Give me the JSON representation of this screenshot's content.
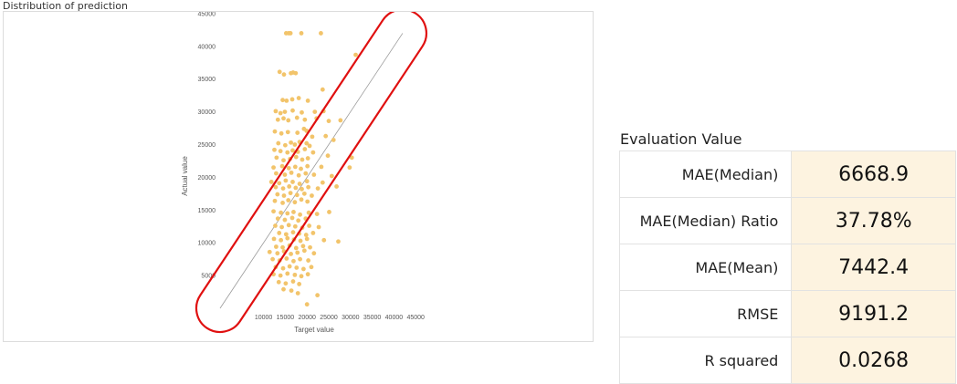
{
  "chart": {
    "title": "Distribution of prediction"
  },
  "evaluation": {
    "title": "Evaluation Value",
    "rows": [
      {
        "label": "MAE(Median)",
        "value": "6668.9"
      },
      {
        "label": "MAE(Median) Ratio",
        "value": "37.78%"
      },
      {
        "label": "MAE(Mean)",
        "value": "7442.4"
      },
      {
        "label": "RMSE",
        "value": "9191.2"
      },
      {
        "label": "R squared",
        "value": "0.0268"
      }
    ]
  },
  "chart_data": {
    "type": "scatter",
    "title": "Distribution of prediction",
    "xlabel": "Target value",
    "ylabel": "Actual value",
    "xlim": [
      0,
      45000
    ],
    "ylim": [
      0,
      45000
    ],
    "x_ticks": [
      "10000",
      "15000",
      "20000",
      "25000",
      "30000",
      "35000",
      "40000",
      "45000"
    ],
    "y_ticks": [
      "5000",
      "10000",
      "15000",
      "20000",
      "25000",
      "30000",
      "35000",
      "40000",
      "45000"
    ],
    "grid": false,
    "point_color": "#f2c46b",
    "diagonal_color": "#9a9a9a",
    "highlight_color": "#e01010",
    "reference_line": {
      "from": [
        0,
        0
      ],
      "to": [
        42000,
        42000
      ]
    },
    "points": [
      [
        15200,
        42000
      ],
      [
        15800,
        42000
      ],
      [
        16200,
        42000
      ],
      [
        18700,
        42000
      ],
      [
        23200,
        42000
      ],
      [
        13700,
        36100
      ],
      [
        14700,
        35700
      ],
      [
        16300,
        35900
      ],
      [
        16800,
        36000
      ],
      [
        17400,
        35900
      ],
      [
        14400,
        31800
      ],
      [
        15300,
        31700
      ],
      [
        16600,
        31900
      ],
      [
        18100,
        32100
      ],
      [
        20200,
        31700
      ],
      [
        12800,
        30100
      ],
      [
        13900,
        29800
      ],
      [
        14900,
        30000
      ],
      [
        16700,
        30200
      ],
      [
        18800,
        29900
      ],
      [
        21800,
        30000
      ],
      [
        23800,
        30100
      ],
      [
        13300,
        28800
      ],
      [
        14600,
        29000
      ],
      [
        15700,
        28700
      ],
      [
        17700,
        29100
      ],
      [
        19500,
        28800
      ],
      [
        22200,
        29000
      ],
      [
        25000,
        28600
      ],
      [
        12600,
        27000
      ],
      [
        14100,
        26700
      ],
      [
        15600,
        26900
      ],
      [
        17800,
        26800
      ],
      [
        19900,
        27100
      ],
      [
        13400,
        25200
      ],
      [
        15000,
        24900
      ],
      [
        16300,
        25300
      ],
      [
        17200,
        25000
      ],
      [
        18300,
        25400
      ],
      [
        19900,
        25200
      ],
      [
        20600,
        24800
      ],
      [
        12500,
        24200
      ],
      [
        13900,
        24000
      ],
      [
        15500,
        23800
      ],
      [
        16700,
        24100
      ],
      [
        17900,
        23900
      ],
      [
        19500,
        24300
      ],
      [
        21400,
        23800
      ],
      [
        13000,
        23000
      ],
      [
        14600,
        22600
      ],
      [
        16100,
        22800
      ],
      [
        17500,
        23100
      ],
      [
        18900,
        22700
      ],
      [
        20200,
        22900
      ],
      [
        24800,
        23300
      ],
      [
        12300,
        21500
      ],
      [
        14300,
        21700
      ],
      [
        15800,
        21400
      ],
      [
        17300,
        21600
      ],
      [
        18600,
        21300
      ],
      [
        20100,
        21700
      ],
      [
        23300,
        21600
      ],
      [
        29800,
        21500
      ],
      [
        12900,
        20600
      ],
      [
        14900,
        20400
      ],
      [
        16400,
        20700
      ],
      [
        18100,
        20300
      ],
      [
        19700,
        20600
      ],
      [
        21600,
        20400
      ],
      [
        25700,
        20200
      ],
      [
        11800,
        19300
      ],
      [
        13600,
        19100
      ],
      [
        15100,
        19500
      ],
      [
        16700,
        19300
      ],
      [
        18300,
        19000
      ],
      [
        20000,
        19400
      ],
      [
        23600,
        19200
      ],
      [
        12800,
        18500
      ],
      [
        14500,
        18300
      ],
      [
        15900,
        18600
      ],
      [
        17400,
        18400
      ],
      [
        18800,
        18200
      ],
      [
        20300,
        18500
      ],
      [
        22500,
        18300
      ],
      [
        26800,
        18600
      ],
      [
        13200,
        17400
      ],
      [
        14700,
        17200
      ],
      [
        16200,
        17600
      ],
      [
        17700,
        17300
      ],
      [
        19400,
        17500
      ],
      [
        21100,
        17200
      ],
      [
        12600,
        16400
      ],
      [
        14400,
        16100
      ],
      [
        15700,
        16500
      ],
      [
        17200,
        16200
      ],
      [
        18700,
        16600
      ],
      [
        20100,
        16300
      ],
      [
        12300,
        14800
      ],
      [
        14000,
        14600
      ],
      [
        15500,
        14500
      ],
      [
        16900,
        14700
      ],
      [
        18400,
        14300
      ],
      [
        20400,
        14600
      ],
      [
        22300,
        14400
      ],
      [
        25100,
        14700
      ],
      [
        13300,
        13700
      ],
      [
        14900,
        13500
      ],
      [
        16600,
        13800
      ],
      [
        18000,
        13400
      ],
      [
        19700,
        13700
      ],
      [
        12700,
        12600
      ],
      [
        14200,
        12400
      ],
      [
        15800,
        12700
      ],
      [
        17300,
        12500
      ],
      [
        18900,
        12300
      ],
      [
        20500,
        12600
      ],
      [
        22700,
        12400
      ],
      [
        13600,
        11500
      ],
      [
        15200,
        11300
      ],
      [
        16800,
        11600
      ],
      [
        18200,
        11400
      ],
      [
        19800,
        11200
      ],
      [
        21400,
        11500
      ],
      [
        12400,
        10600
      ],
      [
        14000,
        10400
      ],
      [
        15500,
        10700
      ],
      [
        17000,
        10500
      ],
      [
        18500,
        10300
      ],
      [
        20000,
        10600
      ],
      [
        23900,
        10400
      ],
      [
        12900,
        9400
      ],
      [
        14400,
        9300
      ],
      [
        16000,
        9600
      ],
      [
        17500,
        9200
      ],
      [
        19100,
        9500
      ],
      [
        20700,
        9300
      ],
      [
        27200,
        10200
      ],
      [
        11400,
        8600
      ],
      [
        13200,
        8400
      ],
      [
        14700,
        8700
      ],
      [
        16300,
        8300
      ],
      [
        17800,
        8500
      ],
      [
        19400,
        8800
      ],
      [
        21600,
        8400
      ],
      [
        12100,
        7500
      ],
      [
        13700,
        7300
      ],
      [
        15300,
        7600
      ],
      [
        16900,
        7200
      ],
      [
        18400,
        7500
      ],
      [
        20300,
        7300
      ],
      [
        12800,
        6300
      ],
      [
        14500,
        6100
      ],
      [
        16000,
        6400
      ],
      [
        17600,
        6200
      ],
      [
        19200,
        6000
      ],
      [
        21000,
        6300
      ],
      [
        12300,
        5200
      ],
      [
        13900,
        5000
      ],
      [
        15500,
        5300
      ],
      [
        17200,
        5100
      ],
      [
        18700,
        4900
      ],
      [
        20200,
        5200
      ],
      [
        13500,
        4000
      ],
      [
        15100,
        3800
      ],
      [
        16800,
        4100
      ],
      [
        18200,
        3700
      ],
      [
        14600,
        2900
      ],
      [
        16400,
        2700
      ],
      [
        17900,
        2300
      ],
      [
        22400,
        2000
      ],
      [
        20000,
        600
      ],
      [
        30300,
        23000
      ],
      [
        31200,
        38700
      ],
      [
        23600,
        33400
      ],
      [
        24300,
        26300
      ],
      [
        26100,
        25700
      ],
      [
        27700,
        28700
      ],
      [
        19300,
        27400
      ],
      [
        21200,
        26200
      ]
    ]
  }
}
